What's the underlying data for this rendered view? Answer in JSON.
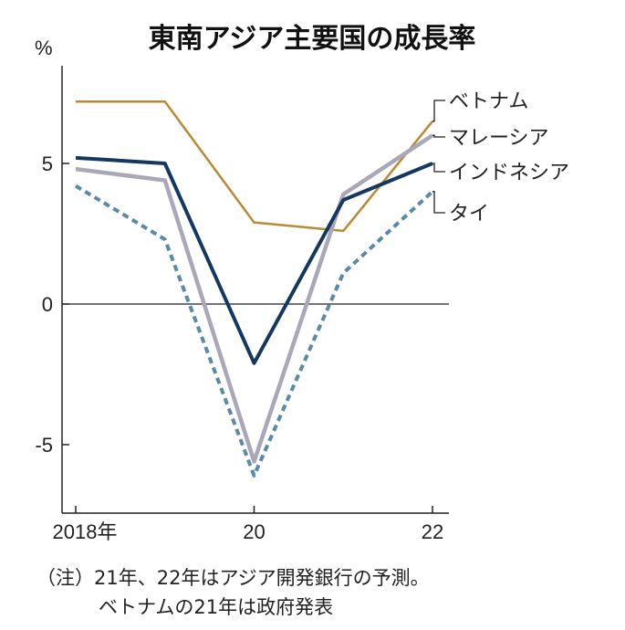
{
  "chart_data": {
    "type": "line",
    "title": "東南アジア主要国の成長率",
    "ylabel": "%",
    "xlabel": "",
    "x": [
      2018,
      2019,
      2020,
      2021,
      2022
    ],
    "x_tick_labels": [
      "2018年",
      "20",
      "22"
    ],
    "x_tick_values": [
      2018,
      2020,
      2022
    ],
    "y_tick_labels": [
      "5",
      "0",
      "-5"
    ],
    "y_tick_values": [
      5,
      0,
      -5
    ],
    "ylim": [
      -7.3,
      8.5
    ],
    "grid": false,
    "legend_placement": "right (direct labels)",
    "series": [
      {
        "name": "ベトナム",
        "values": [
          7.2,
          7.2,
          2.9,
          2.6,
          6.5
        ],
        "color": "#b98a35",
        "style": "solid",
        "width": 2.5
      },
      {
        "name": "マレーシア",
        "values": [
          4.8,
          4.4,
          -5.6,
          3.9,
          6.0
        ],
        "color": "#a9a7b8",
        "style": "solid",
        "width": 4.5
      },
      {
        "name": "インドネシア",
        "values": [
          5.2,
          5.0,
          -2.1,
          3.7,
          5.0
        ],
        "color": "#14385f",
        "style": "solid",
        "width": 4
      },
      {
        "name": "タイ",
        "values": [
          4.2,
          2.3,
          -6.1,
          1.1,
          4.0
        ],
        "color": "#5a8aa5",
        "style": "dashed",
        "width": 4
      }
    ],
    "notes": [
      "（注）21年、22年はアジア開発銀行の予測。",
      "ベトナムの21年は政府発表"
    ]
  }
}
